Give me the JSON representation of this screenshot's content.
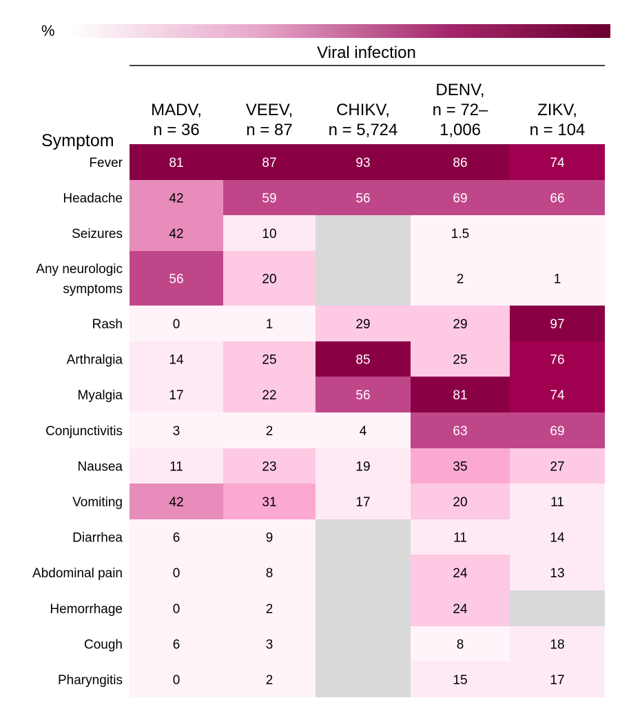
{
  "chart_data": {
    "type": "heatmap",
    "legend": {
      "unit_label": "%",
      "low_color": "#ffffff",
      "high_color": "#6b0030"
    },
    "column_group_label": "Viral infection",
    "row_title": "Symptom",
    "columns": [
      {
        "lines": [
          "MADV,",
          "n = 36"
        ]
      },
      {
        "lines": [
          "VEEV,",
          "n = 87"
        ]
      },
      {
        "lines": [
          "CHIKV,",
          "n = 5,724"
        ]
      },
      {
        "lines": [
          "DENV,",
          "n = 72–",
          "1,006"
        ]
      },
      {
        "lines": [
          "ZIKV,",
          "n = 104"
        ]
      }
    ],
    "rows": [
      {
        "lines": [
          "Fever"
        ],
        "values": [
          "81",
          "87",
          "93",
          "86",
          "74"
        ]
      },
      {
        "lines": [
          "Headache"
        ],
        "values": [
          "42",
          "59",
          "56",
          "69",
          "66"
        ]
      },
      {
        "lines": [
          "Seizures"
        ],
        "values": [
          "42",
          "10",
          null,
          "1.5",
          ""
        ]
      },
      {
        "lines": [
          "Any neurologic",
          "symptoms"
        ],
        "values": [
          "56",
          "20",
          null,
          "2",
          "1"
        ]
      },
      {
        "lines": [
          "Rash"
        ],
        "values": [
          "0",
          "1",
          "29",
          "29",
          "97"
        ]
      },
      {
        "lines": [
          "Arthralgia"
        ],
        "values": [
          "14",
          "25",
          "85",
          "25",
          "76"
        ]
      },
      {
        "lines": [
          "Myalgia"
        ],
        "values": [
          "17",
          "22",
          "56",
          "81",
          "74"
        ]
      },
      {
        "lines": [
          "Conjunctivitis"
        ],
        "values": [
          "3",
          "2",
          "4",
          "63",
          "69"
        ]
      },
      {
        "lines": [
          "Nausea"
        ],
        "values": [
          "11",
          "23",
          "19",
          "35",
          "27"
        ]
      },
      {
        "lines": [
          "Vomiting"
        ],
        "values": [
          "42",
          "31",
          "17",
          "20",
          "11"
        ]
      },
      {
        "lines": [
          "Diarrhea"
        ],
        "values": [
          "6",
          "9",
          null,
          "11",
          "14"
        ]
      },
      {
        "lines": [
          "Abdominal pain"
        ],
        "values": [
          "0",
          "8",
          null,
          "24",
          "13"
        ]
      },
      {
        "lines": [
          "Hemorrhage"
        ],
        "values": [
          "0",
          "2",
          null,
          "24",
          null
        ]
      },
      {
        "lines": [
          "Cough"
        ],
        "values": [
          "6",
          "3",
          null,
          "8",
          "18"
        ]
      },
      {
        "lines": [
          "Pharyngitis"
        ],
        "values": [
          "0",
          "2",
          null,
          "15",
          "17"
        ]
      }
    ],
    "colors": {
      "missing": "#d9d9d9",
      "text_dark": "#000000",
      "text_light": "#ffffff",
      "scale": [
        {
          "min": 80,
          "color": "#8a0045"
        },
        {
          "min": 70,
          "color": "#a00050"
        },
        {
          "min": 50,
          "color": "#c0468a"
        },
        {
          "min": 40,
          "color": "#e88cbc"
        },
        {
          "min": 30,
          "color": "#fca9d2"
        },
        {
          "min": 20,
          "color": "#fdc9e3"
        },
        {
          "min": 10,
          "color": "#feeaf4"
        },
        {
          "min": 0,
          "color": "#fff4fa"
        }
      ],
      "light_text_from": 50
    }
  }
}
